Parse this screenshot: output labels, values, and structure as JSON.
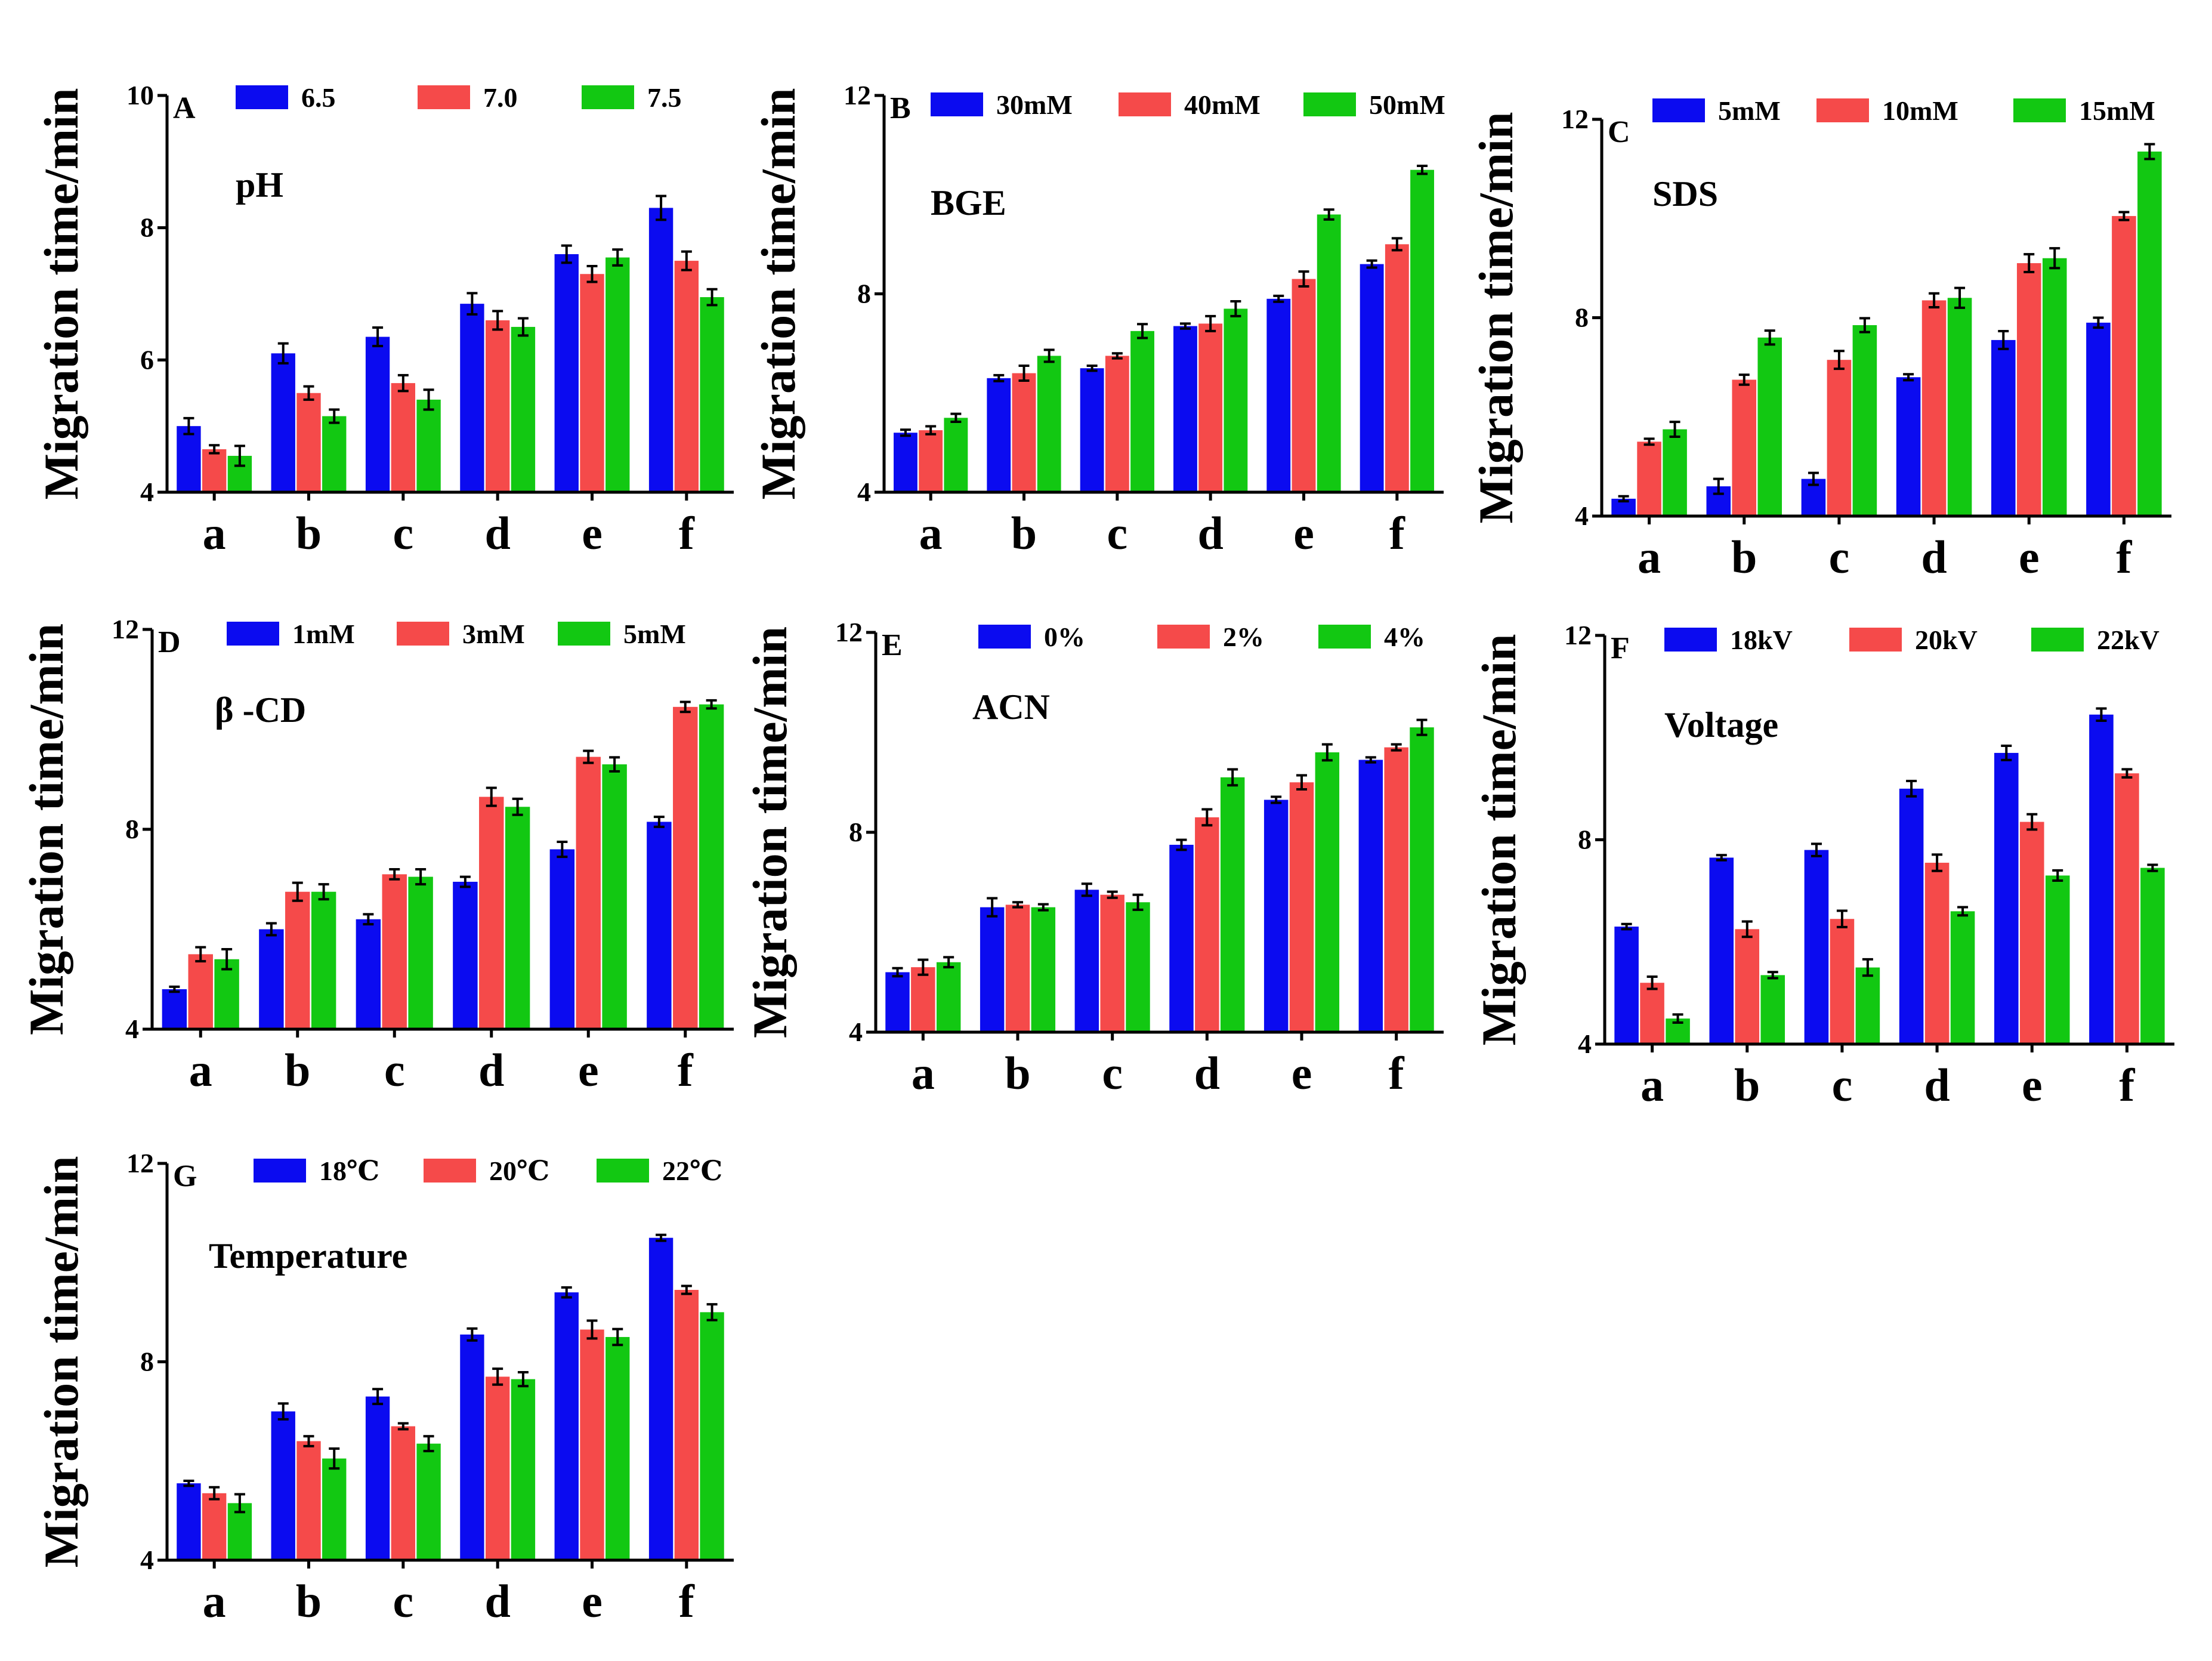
{
  "figure": {
    "colors": [
      "#0b0bf0",
      "#f54a4a",
      "#12c812"
    ],
    "ylabel": "Migration time/min",
    "categories": [
      "a",
      "b",
      "c",
      "d",
      "e",
      "f"
    ]
  },
  "chart_data": [
    {
      "panel": "A",
      "type": "bar",
      "title": "pH",
      "ylabel": "Migration time/min",
      "ylim": [
        4,
        10
      ],
      "yticks": [
        4,
        6,
        8,
        10
      ],
      "categories": [
        "a",
        "b",
        "c",
        "d",
        "e",
        "f"
      ],
      "series": [
        {
          "name": "6.5",
          "values": [
            5.0,
            6.1,
            6.35,
            6.85,
            7.6,
            8.3
          ],
          "errors": [
            0.12,
            0.15,
            0.14,
            0.16,
            0.13,
            0.18
          ]
        },
        {
          "name": "7.0",
          "values": [
            4.65,
            5.5,
            5.65,
            6.6,
            7.3,
            7.5
          ],
          "errors": [
            0.06,
            0.1,
            0.12,
            0.14,
            0.12,
            0.14
          ]
        },
        {
          "name": "7.5",
          "values": [
            4.55,
            5.15,
            5.4,
            6.5,
            7.55,
            6.95
          ],
          "errors": [
            0.15,
            0.1,
            0.15,
            0.13,
            0.12,
            0.12
          ]
        }
      ]
    },
    {
      "panel": "B",
      "type": "bar",
      "title": "BGE",
      "ylabel": "Migration time/min",
      "ylim": [
        4,
        12
      ],
      "yticks": [
        4,
        8,
        12
      ],
      "categories": [
        "a",
        "b",
        "c",
        "d",
        "e",
        "f"
      ],
      "series": [
        {
          "name": "30mM",
          "values": [
            5.2,
            6.3,
            6.5,
            7.35,
            7.9,
            8.6
          ],
          "errors": [
            0.06,
            0.06,
            0.05,
            0.05,
            0.06,
            0.07
          ]
        },
        {
          "name": "40mM",
          "values": [
            5.25,
            6.4,
            6.75,
            7.4,
            8.3,
            9.0
          ],
          "errors": [
            0.08,
            0.15,
            0.05,
            0.15,
            0.15,
            0.12
          ]
        },
        {
          "name": "50mM",
          "values": [
            5.5,
            6.75,
            7.25,
            7.7,
            9.6,
            10.5
          ],
          "errors": [
            0.08,
            0.12,
            0.14,
            0.15,
            0.1,
            0.08
          ]
        }
      ]
    },
    {
      "panel": "C",
      "type": "bar",
      "title": "SDS",
      "ylabel": "Migration time/min",
      "ylim": [
        4,
        12
      ],
      "yticks": [
        4,
        8,
        12
      ],
      "categories": [
        "a",
        "b",
        "c",
        "d",
        "e",
        "f"
      ],
      "series": [
        {
          "name": "5mM",
          "values": [
            4.35,
            4.6,
            4.75,
            6.8,
            7.55,
            7.9
          ],
          "errors": [
            0.05,
            0.15,
            0.12,
            0.06,
            0.18,
            0.1
          ]
        },
        {
          "name": "10mM",
          "values": [
            5.5,
            6.75,
            7.15,
            8.35,
            9.1,
            10.05
          ],
          "errors": [
            0.06,
            0.1,
            0.18,
            0.14,
            0.18,
            0.08
          ]
        },
        {
          "name": "15mM",
          "values": [
            5.75,
            7.6,
            7.85,
            8.4,
            9.2,
            11.35
          ],
          "errors": [
            0.15,
            0.14,
            0.14,
            0.2,
            0.2,
            0.15
          ]
        }
      ]
    },
    {
      "panel": "D",
      "type": "bar",
      "title": "β -CD",
      "ylabel": "Migration time/min",
      "ylim": [
        4,
        12
      ],
      "yticks": [
        4,
        8,
        12
      ],
      "categories": [
        "a",
        "b",
        "c",
        "d",
        "e",
        "f"
      ],
      "series": [
        {
          "name": "1mM",
          "values": [
            4.8,
            6.0,
            6.2,
            6.95,
            7.6,
            8.15
          ],
          "errors": [
            0.05,
            0.12,
            0.1,
            0.1,
            0.15,
            0.1
          ]
        },
        {
          "name": "3mM",
          "values": [
            5.5,
            6.75,
            7.1,
            8.65,
            9.45,
            10.45
          ],
          "errors": [
            0.14,
            0.18,
            0.1,
            0.18,
            0.12,
            0.1
          ]
        },
        {
          "name": "5mM",
          "values": [
            5.4,
            6.75,
            7.05,
            8.45,
            9.3,
            10.5
          ],
          "errors": [
            0.2,
            0.15,
            0.15,
            0.16,
            0.14,
            0.08
          ]
        }
      ]
    },
    {
      "panel": "E",
      "type": "bar",
      "title": "ACN",
      "ylabel": "Migration time/min",
      "ylim": [
        4,
        12
      ],
      "yticks": [
        4,
        8,
        12
      ],
      "categories": [
        "a",
        "b",
        "c",
        "d",
        "e",
        "f"
      ],
      "series": [
        {
          "name": "0%",
          "values": [
            5.2,
            6.5,
            6.85,
            7.75,
            8.65,
            9.45
          ],
          "errors": [
            0.08,
            0.18,
            0.12,
            0.1,
            0.06,
            0.05
          ]
        },
        {
          "name": "2%",
          "values": [
            5.3,
            6.55,
            6.75,
            8.3,
            9.0,
            9.7
          ],
          "errors": [
            0.15,
            0.05,
            0.06,
            0.16,
            0.14,
            0.06
          ]
        },
        {
          "name": "4%",
          "values": [
            5.4,
            6.5,
            6.6,
            9.1,
            9.6,
            10.1
          ],
          "errors": [
            0.1,
            0.06,
            0.15,
            0.16,
            0.16,
            0.15
          ]
        }
      ]
    },
    {
      "panel": "F",
      "type": "bar",
      "title": "Voltage",
      "ylabel": "Migration time/min",
      "ylim": [
        4,
        12
      ],
      "yticks": [
        4,
        8,
        12
      ],
      "categories": [
        "a",
        "b",
        "c",
        "d",
        "e",
        "f"
      ],
      "series": [
        {
          "name": "18kV",
          "values": [
            6.3,
            7.65,
            7.8,
            9.0,
            9.7,
            10.45
          ],
          "errors": [
            0.05,
            0.05,
            0.12,
            0.15,
            0.14,
            0.12
          ]
        },
        {
          "name": "20kV",
          "values": [
            5.2,
            6.25,
            6.45,
            7.55,
            8.35,
            9.3
          ],
          "errors": [
            0.12,
            0.15,
            0.16,
            0.16,
            0.15,
            0.08
          ]
        },
        {
          "name": "22kV",
          "values": [
            4.5,
            5.35,
            5.5,
            6.6,
            7.3,
            7.45
          ],
          "errors": [
            0.08,
            0.06,
            0.16,
            0.08,
            0.1,
            0.06
          ]
        }
      ]
    },
    {
      "panel": "G",
      "type": "bar",
      "title": "Temperature",
      "ylabel": "Migration time/min",
      "ylim": [
        4,
        12
      ],
      "yticks": [
        4,
        8,
        12
      ],
      "categories": [
        "a",
        "b",
        "c",
        "d",
        "e",
        "f"
      ],
      "series": [
        {
          "name": "18℃",
          "values": [
            5.55,
            7.0,
            7.3,
            8.55,
            9.4,
            10.5
          ],
          "errors": [
            0.05,
            0.16,
            0.15,
            0.12,
            0.1,
            0.06
          ]
        },
        {
          "name": "20℃",
          "values": [
            5.35,
            6.4,
            6.7,
            7.7,
            8.65,
            9.45
          ],
          "errors": [
            0.12,
            0.1,
            0.06,
            0.16,
            0.18,
            0.08
          ]
        },
        {
          "name": "22℃",
          "values": [
            5.15,
            6.05,
            6.35,
            7.65,
            8.5,
            9.0
          ],
          "errors": [
            0.18,
            0.2,
            0.15,
            0.14,
            0.16,
            0.16
          ]
        }
      ]
    }
  ]
}
